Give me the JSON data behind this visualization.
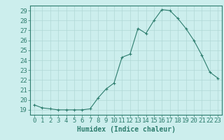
{
  "x": [
    0,
    1,
    2,
    3,
    4,
    5,
    6,
    7,
    8,
    9,
    10,
    11,
    12,
    13,
    14,
    15,
    16,
    17,
    18,
    19,
    20,
    21,
    22,
    23
  ],
  "y": [
    19.5,
    19.2,
    19.1,
    19.0,
    19.0,
    19.0,
    19.0,
    19.1,
    20.2,
    21.1,
    21.7,
    24.3,
    24.6,
    27.2,
    26.7,
    28.0,
    29.1,
    29.0,
    28.2,
    27.2,
    26.0,
    24.5,
    22.8,
    22.2
  ],
  "line_color": "#2e7d6e",
  "marker_color": "#2e7d6e",
  "bg_color": "#cceeed",
  "grid_color": "#b0d8d5",
  "xlabel": "Humidex (Indice chaleur)",
  "ylim": [
    18.5,
    29.5
  ],
  "xlim": [
    -0.5,
    23.5
  ],
  "yticks": [
    19,
    20,
    21,
    22,
    23,
    24,
    25,
    26,
    27,
    28,
    29
  ],
  "xticks": [
    0,
    1,
    2,
    3,
    4,
    5,
    6,
    7,
    8,
    9,
    10,
    11,
    12,
    13,
    14,
    15,
    16,
    17,
    18,
    19,
    20,
    21,
    22,
    23
  ],
  "xlabel_fontsize": 7,
  "tick_fontsize": 6.5,
  "marker_size": 2.5,
  "linewidth": 0.8
}
